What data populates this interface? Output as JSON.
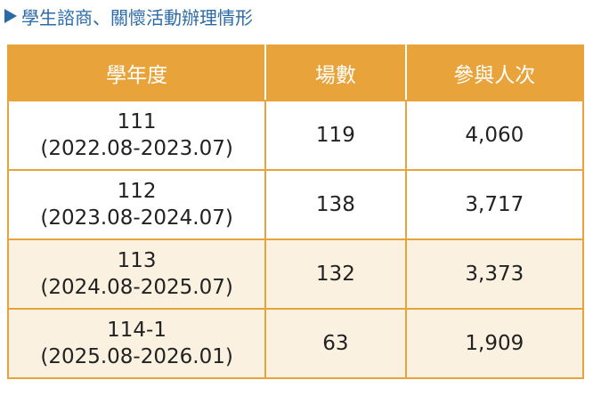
{
  "header": {
    "title": "學生諮商、關懷活動辦理情形"
  },
  "table": {
    "columns": [
      "學年度",
      "場數",
      "參與人次"
    ],
    "rows": [
      {
        "year": "111",
        "period": "(2022.08-2023.07)",
        "sessions": "119",
        "participants": "4,060"
      },
      {
        "year": "112",
        "period": "(2023.08-2024.07)",
        "sessions": "138",
        "participants": "3,717"
      },
      {
        "year": "113",
        "period": "(2024.08-2025.07)",
        "sessions": "132",
        "participants": "3,373"
      },
      {
        "year": "114-1",
        "period": "(2025.08-2026.01)",
        "sessions": "63",
        "participants": "1,909"
      }
    ]
  }
}
